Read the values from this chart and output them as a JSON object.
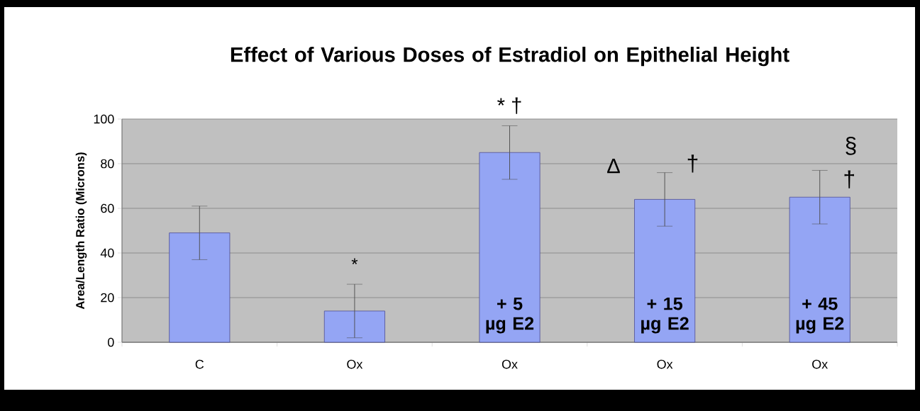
{
  "chart_data": {
    "type": "bar",
    "title": "Effect of Various Doses of Estradiol on Epithelial Height",
    "ylabel": "Area/Length Ratio (Microns)",
    "categories": [
      "C",
      "Ox",
      "Ox",
      "Ox",
      "Ox"
    ],
    "values": [
      49,
      14,
      85,
      64,
      65
    ],
    "errors": [
      12,
      12,
      12,
      12,
      12
    ],
    "color": "#94a5f4",
    "ylim": [
      0,
      100
    ],
    "yticks": [
      0,
      20,
      40,
      60,
      80,
      100
    ],
    "grid": "y",
    "annotations": [
      "*",
      "* †",
      "Δ",
      "†",
      "§",
      "†",
      "+ 5 µg E2",
      "+ 15 µg E2",
      "+ 45 µg E2"
    ]
  }
}
